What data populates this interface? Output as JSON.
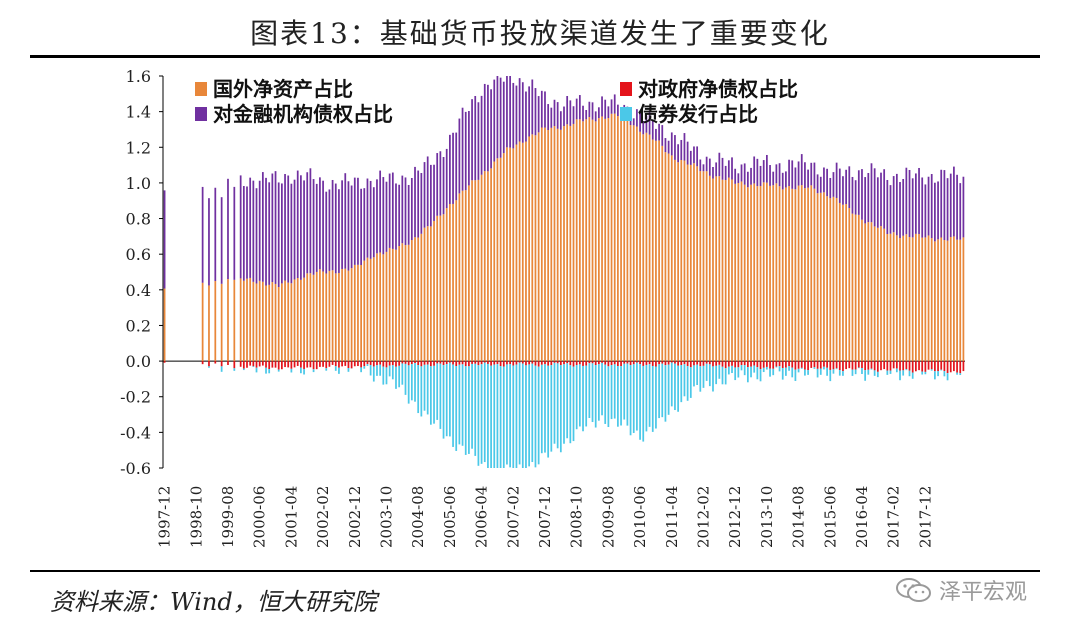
{
  "chart_data": {
    "type": "bar",
    "title": "图表13：基础货币投放渠道发生了重要变化",
    "source": "资料来源：Wind，恒大研究院",
    "watermark": "泽平宏观",
    "stacked": true,
    "ylim": [
      -0.6,
      1.6
    ],
    "yticks": [
      "1.6",
      "1.4",
      "1.2",
      "1.0",
      "0.8",
      "0.6",
      "0.4",
      "0.2",
      "0.0",
      "-0.2",
      "-0.4",
      "-0.6"
    ],
    "ytick_values": [
      1.6,
      1.4,
      1.2,
      1.0,
      0.8,
      0.6,
      0.4,
      0.2,
      0.0,
      -0.2,
      -0.4,
      -0.6
    ],
    "xticks": [
      "1997-12",
      "1998-10",
      "1999-08",
      "2000-06",
      "2001-04",
      "2002-02",
      "2002-12",
      "2003-10",
      "2004-08",
      "2005-06",
      "2006-04",
      "2007-02",
      "2007-12",
      "2008-10",
      "2009-08",
      "2010-06",
      "2011-04",
      "2012-02",
      "2012-12",
      "2013-10",
      "2014-08",
      "2015-06",
      "2016-04",
      "2017-02",
      "2017-12"
    ],
    "xtick_months": [
      0,
      10,
      20,
      30,
      40,
      50,
      60,
      70,
      80,
      90,
      100,
      110,
      120,
      130,
      140,
      150,
      160,
      170,
      180,
      190,
      200,
      210,
      220,
      230,
      240
    ],
    "n_months": 253,
    "data_start_month": 24,
    "sparse_months": [
      0,
      12,
      14,
      16,
      18,
      20,
      22
    ],
    "legend": [
      {
        "name": "国外净资产占比",
        "color": "#E8873A"
      },
      {
        "name": "对政府净债权占比",
        "color": "#E4141B"
      },
      {
        "name": "对金融机构债权占比",
        "color": "#7030A0"
      },
      {
        "name": "债券发行占比",
        "color": "#4BC8E8"
      }
    ],
    "series_anchors": {
      "foreign_assets": [
        [
          0,
          0.4
        ],
        [
          12,
          0.42
        ],
        [
          20,
          0.46
        ],
        [
          30,
          0.45
        ],
        [
          36,
          0.42
        ],
        [
          44,
          0.48
        ],
        [
          50,
          0.5
        ],
        [
          60,
          0.52
        ],
        [
          66,
          0.6
        ],
        [
          72,
          0.62
        ],
        [
          78,
          0.68
        ],
        [
          84,
          0.76
        ],
        [
          90,
          0.88
        ],
        [
          96,
          0.98
        ],
        [
          102,
          1.08
        ],
        [
          108,
          1.18
        ],
        [
          114,
          1.25
        ],
        [
          120,
          1.3
        ],
        [
          126,
          1.32
        ],
        [
          132,
          1.35
        ],
        [
          138,
          1.37
        ],
        [
          144,
          1.38
        ],
        [
          150,
          1.3
        ],
        [
          156,
          1.22
        ],
        [
          160,
          1.15
        ],
        [
          166,
          1.1
        ],
        [
          172,
          1.05
        ],
        [
          180,
          1.0
        ],
        [
          188,
          0.99
        ],
        [
          196,
          0.98
        ],
        [
          204,
          0.97
        ],
        [
          210,
          0.93
        ],
        [
          216,
          0.85
        ],
        [
          222,
          0.78
        ],
        [
          228,
          0.72
        ],
        [
          236,
          0.7
        ],
        [
          244,
          0.69
        ],
        [
          252,
          0.68
        ]
      ],
      "claims_on_fi": [
        [
          0,
          0.57
        ],
        [
          12,
          0.52
        ],
        [
          20,
          0.52
        ],
        [
          30,
          0.58
        ],
        [
          40,
          0.6
        ],
        [
          50,
          0.5
        ],
        [
          60,
          0.48
        ],
        [
          66,
          0.42
        ],
        [
          72,
          0.4
        ],
        [
          80,
          0.35
        ],
        [
          90,
          0.36
        ],
        [
          96,
          0.45
        ],
        [
          100,
          0.48
        ],
        [
          104,
          0.45
        ],
        [
          110,
          0.4
        ],
        [
          114,
          0.3
        ],
        [
          120,
          0.18
        ],
        [
          126,
          0.12
        ],
        [
          132,
          0.1
        ],
        [
          138,
          0.08
        ],
        [
          144,
          0.06
        ],
        [
          150,
          0.08
        ],
        [
          156,
          0.1
        ],
        [
          160,
          0.12
        ],
        [
          166,
          0.1
        ],
        [
          172,
          0.08
        ],
        [
          180,
          0.1
        ],
        [
          188,
          0.12
        ],
        [
          196,
          0.12
        ],
        [
          204,
          0.14
        ],
        [
          210,
          0.12
        ],
        [
          216,
          0.22
        ],
        [
          222,
          0.28
        ],
        [
          228,
          0.32
        ],
        [
          236,
          0.34
        ],
        [
          244,
          0.35
        ],
        [
          252,
          0.36
        ]
      ],
      "claims_on_gov": [
        [
          0,
          0.0
        ],
        [
          20,
          -0.03
        ],
        [
          40,
          -0.04
        ],
        [
          60,
          -0.03
        ],
        [
          80,
          -0.02
        ],
        [
          120,
          -0.02
        ],
        [
          160,
          -0.02
        ],
        [
          200,
          -0.04
        ],
        [
          230,
          -0.05
        ],
        [
          252,
          -0.06
        ]
      ],
      "bond_issuance": [
        [
          0,
          0.0
        ],
        [
          60,
          0.0
        ],
        [
          66,
          -0.05
        ],
        [
          72,
          -0.1
        ],
        [
          78,
          -0.2
        ],
        [
          84,
          -0.32
        ],
        [
          90,
          -0.42
        ],
        [
          96,
          -0.5
        ],
        [
          100,
          -0.56
        ],
        [
          104,
          -0.6
        ],
        [
          110,
          -0.6
        ],
        [
          114,
          -0.58
        ],
        [
          120,
          -0.52
        ],
        [
          126,
          -0.44
        ],
        [
          132,
          -0.36
        ],
        [
          138,
          -0.3
        ],
        [
          144,
          -0.34
        ],
        [
          150,
          -0.4
        ],
        [
          156,
          -0.34
        ],
        [
          162,
          -0.22
        ],
        [
          168,
          -0.14
        ],
        [
          176,
          -0.08
        ],
        [
          184,
          -0.05
        ],
        [
          200,
          -0.03
        ],
        [
          220,
          -0.02
        ],
        [
          252,
          -0.01
        ]
      ]
    }
  }
}
